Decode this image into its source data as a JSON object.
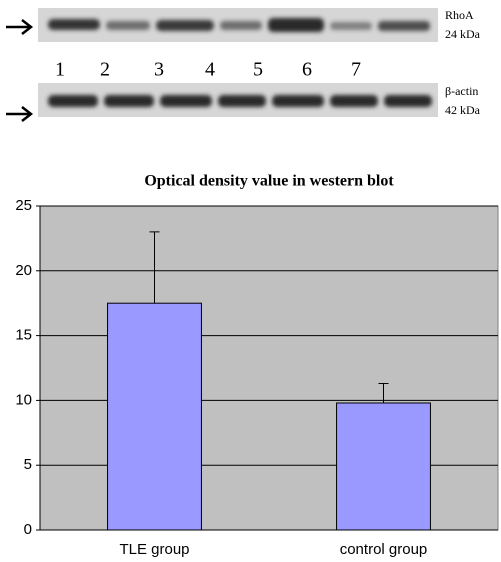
{
  "blot": {
    "lanes": [
      "1",
      "2",
      "3",
      "4",
      "5",
      "6",
      "7"
    ],
    "top_labels": [
      "RhoA",
      "24 kDa"
    ],
    "bottom_labels": [
      "β-actin",
      "42 kDa"
    ]
  },
  "chart_data": {
    "type": "bar",
    "title": "Optical density value in western blot",
    "categories": [
      "TLE group",
      "control group"
    ],
    "values": [
      17.5,
      9.8
    ],
    "errors": [
      5.5,
      1.5
    ],
    "color": "#9999ff",
    "ylim": [
      0,
      25
    ],
    "yticks": [
      0,
      5,
      10,
      15,
      20,
      25
    ],
    "grid": true
  }
}
